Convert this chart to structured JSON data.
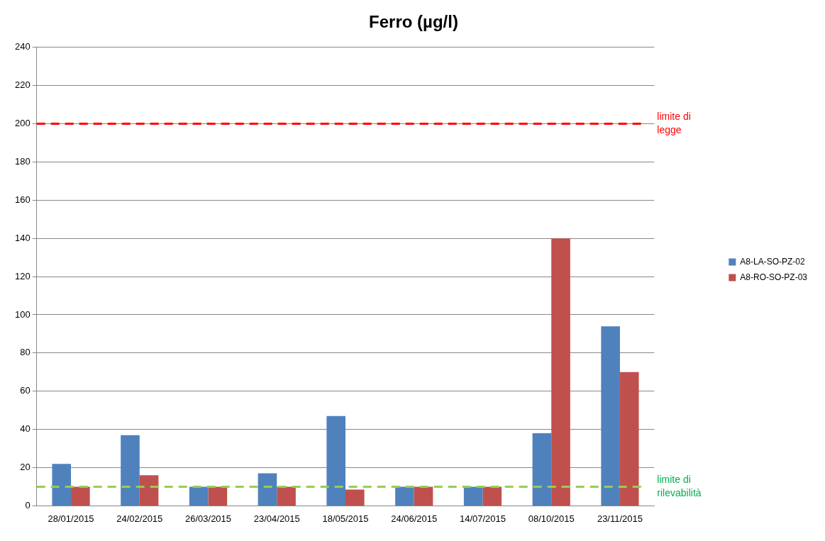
{
  "chart_data": {
    "type": "bar",
    "title": "Ferro (µg/l)",
    "categories": [
      "28/01/2015",
      "24/02/2015",
      "26/03/2015",
      "23/04/2015",
      "18/05/2015",
      "24/06/2015",
      "14/07/2015",
      "08/10/2015",
      "23/11/2015"
    ],
    "series": [
      {
        "name": "A8-LA-SO-PZ-02",
        "color": "#4f81bd",
        "values": [
          22,
          37,
          10,
          17,
          47,
          10,
          10,
          38,
          94
        ]
      },
      {
        "name": "A8-RO-SO-PZ-03",
        "color": "#c0504d",
        "values": [
          10,
          16,
          10,
          10,
          8.5,
          10,
          10,
          140,
          70
        ]
      }
    ],
    "ylim": [
      0,
      240
    ],
    "yticks": [
      0,
      20,
      40,
      60,
      80,
      100,
      120,
      140,
      160,
      180,
      200,
      220,
      240
    ],
    "grid": "y",
    "legend": "right",
    "ref_lines": [
      {
        "axis": "y",
        "value": 200,
        "label": "limite di legge",
        "color": "#ff0000",
        "line_style": "dashed"
      },
      {
        "axis": "y",
        "value": 10,
        "label": "limite di rilevabilità",
        "color": "#92d050",
        "line_style": "dashed"
      }
    ]
  }
}
